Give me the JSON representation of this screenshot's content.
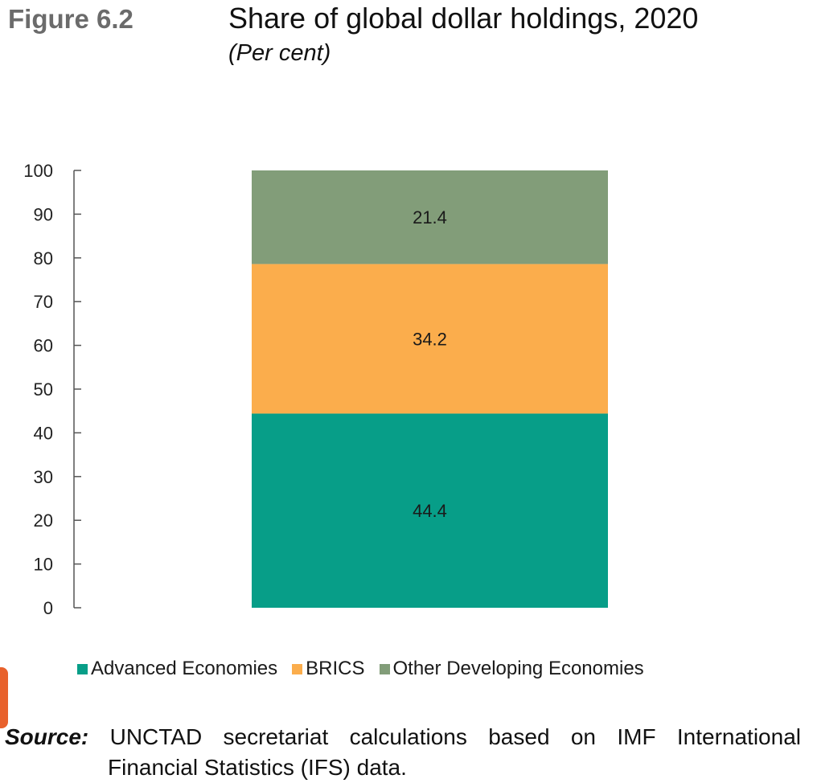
{
  "figure": {
    "label": "Figure 6.2",
    "title": "Share of global dollar holdings, 2020",
    "subtitle": "(Per cent)"
  },
  "chart_data": {
    "type": "bar",
    "stacked": true,
    "categories": [
      ""
    ],
    "series": [
      {
        "name": "Advanced Economies",
        "values": [
          44.4
        ],
        "color": "#079e88"
      },
      {
        "name": "BRICS",
        "values": [
          34.2
        ],
        "color": "#fbad4c"
      },
      {
        "name": "Other Developing Economies",
        "values": [
          21.4
        ],
        "color": "#829d79"
      }
    ],
    "ylim": [
      0,
      100
    ],
    "yticks": [
      "0",
      "10",
      "20",
      "30",
      "40",
      "50",
      "60",
      "70",
      "80",
      "90",
      "100"
    ],
    "data_labels": [
      "44.4",
      "34.2",
      "21.4"
    ],
    "grid": false,
    "legend_position": "bottom"
  },
  "legend": {
    "items": [
      {
        "label": "Advanced Economies",
        "color": "#079e88"
      },
      {
        "label": "BRICS",
        "color": "#fbad4c"
      },
      {
        "label": "Other Developing Economies",
        "color": "#829d79"
      }
    ]
  },
  "source": {
    "label": "Source:",
    "line1": "UNCTAD secretariat calculations based on IMF International",
    "line2": "Financial Statistics (IFS) data."
  }
}
